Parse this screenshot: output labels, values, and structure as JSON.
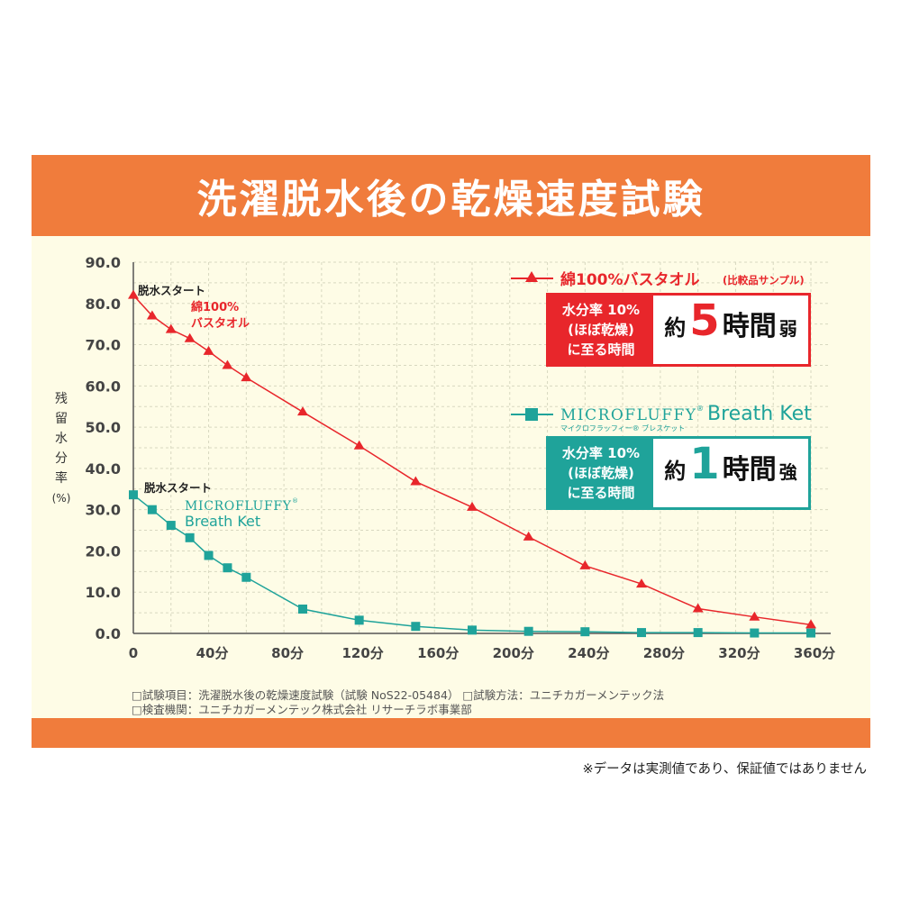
{
  "title": "洗濯脱水後の乾燥速度試験",
  "y_axis_label": [
    "残",
    "留",
    "水",
    "分",
    "率"
  ],
  "y_axis_unit": "(%)",
  "annotations": {
    "start_cotton_title": "脱水スタート",
    "start_cotton_name_1": "綿100%",
    "start_cotton_name_2": "バスタオル",
    "start_micro_title": "脱水スタート",
    "start_micro_brand": "MICROFLUFFY",
    "start_micro_reg": "®",
    "start_micro_name": "Breath Ket"
  },
  "legend": {
    "cotton_label": "綿100%バスタオル",
    "cotton_note": "(比較品サンプル)",
    "micro_brand": "MICROFLUFFY",
    "micro_reg": "®",
    "micro_name": "Breath Ket",
    "micro_kana": "マイクロフラッフィー® ブレスケット"
  },
  "result_cotton": {
    "line1": "水分率 10%",
    "line2": "(ほぼ乾燥)",
    "line3": "に至る時間",
    "prefix": "約",
    "number": "5",
    "unit": "時間",
    "suffix": "弱"
  },
  "result_micro": {
    "line1": "水分率 10%",
    "line2": "(ほぼ乾燥)",
    "line3": "に至る時間",
    "prefix": "約",
    "number": "1",
    "unit": "時間",
    "suffix": "強"
  },
  "notes": {
    "line1": "□試験項目：洗濯脱水後の乾燥速度試験（試験 NoS22-05484） □試験方法：ユニチカガーメンテック法",
    "line2": "□検査機関：ユニチカガーメンテック株式会社 リサーチラボ事業部"
  },
  "disclaimer": "※データは実測値であり、保証値ではありません",
  "colors": {
    "orange": "#f07c3c",
    "red": "#e8262b",
    "teal": "#1fa39a"
  },
  "chart_data": {
    "type": "line",
    "title": "洗濯脱水後の乾燥速度試験",
    "xlabel": "",
    "ylabel": "残留水分率 (%)",
    "xlim": [
      0,
      360
    ],
    "ylim": [
      0,
      90
    ],
    "grid": true,
    "x_ticks": [
      0,
      40,
      80,
      120,
      160,
      200,
      240,
      280,
      320,
      360
    ],
    "x_tick_labels": [
      "0",
      "40分",
      "80分",
      "120分",
      "160分",
      "200分",
      "240分",
      "280分",
      "320分",
      "360分"
    ],
    "y_ticks": [
      0,
      10,
      20,
      30,
      40,
      50,
      60,
      70,
      80,
      90
    ],
    "y_tick_labels": [
      "0.0",
      "10.0",
      "20.0",
      "30.0",
      "40.0",
      "50.0",
      "60.0",
      "70.0",
      "80.0",
      "90.0"
    ],
    "series": [
      {
        "name": "綿100%バスタオル",
        "marker": "triangle",
        "color": "#e8262b",
        "x": [
          0,
          10,
          20,
          30,
          40,
          50,
          60,
          90,
          120,
          150,
          180,
          210,
          240,
          270,
          300,
          330,
          360
        ],
        "y": [
          82,
          77,
          73.7,
          71.5,
          68.4,
          65,
          62,
          53.7,
          45.5,
          36.8,
          30.6,
          23.4,
          16.4,
          12,
          6,
          4,
          2.1
        ]
      },
      {
        "name": "MICROFLUFFY Breath Ket",
        "marker": "square",
        "color": "#1fa39a",
        "x": [
          0,
          10,
          20,
          30,
          40,
          50,
          60,
          90,
          120,
          150,
          180,
          210,
          240,
          270,
          300,
          330,
          360
        ],
        "y": [
          33.6,
          30,
          26.2,
          23.2,
          18.9,
          15.9,
          13.6,
          5.9,
          3.2,
          1.7,
          0.8,
          0.5,
          0.4,
          0.2,
          0.2,
          0.1,
          0.1
        ]
      }
    ]
  }
}
